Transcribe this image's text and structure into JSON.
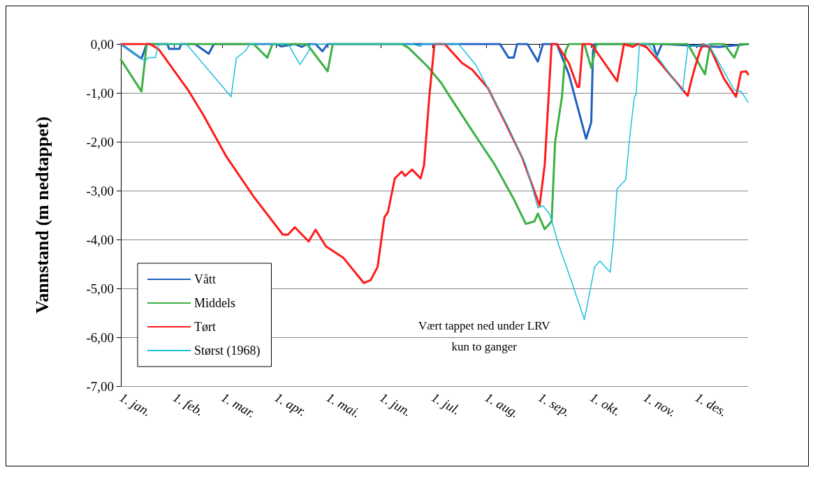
{
  "chart_data": {
    "type": "line",
    "ylabel": "Vannstand (m nedtappet)",
    "xlim": [
      "--01-01",
      "--12-31"
    ],
    "xticks": [
      {
        "value": "--01-01",
        "label": "1. jan."
      },
      {
        "value": "--02-01",
        "label": "1. feb."
      },
      {
        "value": "--03-01",
        "label": "1. mar."
      },
      {
        "value": "--04-01",
        "label": "1. apr."
      },
      {
        "value": "--05-01",
        "label": "1. mai."
      },
      {
        "value": "--06-01",
        "label": "1. jun."
      },
      {
        "value": "--07-01",
        "label": "1. jul."
      },
      {
        "value": "--08-01",
        "label": "1. aug."
      },
      {
        "value": "--09-01",
        "label": "1. sep."
      },
      {
        "value": "--10-01",
        "label": "1. okt."
      },
      {
        "value": "--11-01",
        "label": "1. nov."
      },
      {
        "value": "--12-01",
        "label": "1. des."
      }
    ],
    "ylim": [
      -7,
      0
    ],
    "yticks": [
      {
        "value": -7,
        "label": "-7,00"
      },
      {
        "value": -6,
        "label": "-6,00"
      },
      {
        "value": -5,
        "label": "-5,00"
      },
      {
        "value": -4,
        "label": "-4,00"
      },
      {
        "value": -3,
        "label": "-3,00"
      },
      {
        "value": -2,
        "label": "-2,00"
      },
      {
        "value": -1,
        "label": "-1,00"
      },
      {
        "value": 0,
        "label": "0,00"
      }
    ],
    "grid": "y",
    "legend": "bottom left",
    "marker": "none",
    "line_style": "solid",
    "annotations": [
      "Vært tappet ned under LRV\nkun to ganger"
    ],
    "series": [
      {
        "name": "Vått",
        "color": "#1f5fbf",
        "x": [
          "--01-01",
          "--01-13",
          "--01-16",
          "--01-28",
          "--01-29",
          "--02-04",
          "--02-05",
          "--02-13",
          "--02-21",
          "--02-24",
          "--04-01",
          "--04-04",
          "--04-12",
          "--04-16",
          "--04-19",
          "--04-24",
          "--04-28",
          "--05-01",
          "--08-09",
          "--08-14",
          "--08-17",
          "--08-19",
          "--08-25",
          "--08-31",
          "--09-03",
          "--09-11",
          "--09-18",
          "--09-28",
          "--10-01",
          "--10-02",
          "--10-03",
          "--11-06",
          "--11-08",
          "--11-11",
          "--12-14",
          "--12-31"
        ],
        "values": [
          0,
          -0.3,
          0,
          0,
          -0.1,
          -0.1,
          0,
          0,
          -0.2,
          0,
          0,
          -0.05,
          0,
          -0.06,
          0,
          0,
          -0.15,
          0,
          0,
          -0.28,
          -0.28,
          0,
          0,
          -0.36,
          0,
          0,
          -0.62,
          -1.94,
          -1.6,
          -0.15,
          0,
          0,
          -0.25,
          0,
          -0.06,
          0
        ]
      },
      {
        "name": "Middels",
        "color": "#3cb043",
        "x": [
          "--01-01",
          "--01-13",
          "--01-16",
          "--03-19",
          "--03-27",
          "--03-30",
          "--04-19",
          "--05-01",
          "--05-04",
          "--06-13",
          "--06-17",
          "--06-28",
          "--07-06",
          "--07-11",
          "--07-24",
          "--07-30",
          "--08-06",
          "--08-17",
          "--08-24",
          "--08-29",
          "--08-31",
          "--09-04",
          "--09-08",
          "--09-10",
          "--09-14",
          "--09-16",
          "--09-18",
          "--09-27",
          "--10-01",
          "--10-04",
          "--11-26",
          "--12-06",
          "--12-09",
          "--12-17",
          "--12-23",
          "--12-26",
          "--12-31"
        ],
        "values": [
          -0.32,
          -0.97,
          0,
          0,
          -0.28,
          0,
          0,
          -0.56,
          0,
          0,
          -0.08,
          -0.46,
          -0.8,
          -1.08,
          -1.78,
          -2.1,
          -2.47,
          -3.17,
          -3.68,
          -3.63,
          -3.47,
          -3.79,
          -3.63,
          -2.01,
          -1.08,
          -0.15,
          0,
          0,
          -0.49,
          0,
          0,
          -0.62,
          0,
          0,
          -0.28,
          0,
          0
        ]
      },
      {
        "name": "Tørt",
        "color": "#ff1a1a",
        "x": [
          "--01-01",
          "--01-18",
          "--01-23",
          "--02-09",
          "--02-18",
          "--03-03",
          "--03-19",
          "--04-05",
          "--04-08",
          "--04-12",
          "--04-20",
          "--04-24",
          "--04-30",
          "--05-10",
          "--05-22",
          "--05-26",
          "--05-30",
          "--06-03",
          "--06-05",
          "--06-09",
          "--06-13",
          "--06-15",
          "--06-19",
          "--06-24",
          "--06-26",
          "--06-29",
          "--07-02",
          "--07-08",
          "--07-18",
          "--07-24",
          "--08-02",
          "--08-12",
          "--08-22",
          "--09-01",
          "--09-04",
          "--09-08",
          "--09-11",
          "--09-18",
          "--09-23",
          "--09-24",
          "--09-26",
          "--10-01",
          "--10-16",
          "--10-20",
          "--10-25",
          "--10-28",
          "--11-02",
          "--11-11",
          "--11-26",
          "--11-28",
          "--11-30",
          "--12-03",
          "--12-05",
          "--12-09",
          "--12-17",
          "--12-24",
          "--12-27",
          "--12-30",
          "--12-31"
        ],
        "values": [
          0,
          0,
          -0.11,
          -0.94,
          -1.46,
          -2.29,
          -3.12,
          -3.9,
          -3.9,
          -3.75,
          -4.04,
          -3.8,
          -4.14,
          -4.37,
          -4.89,
          -4.83,
          -4.56,
          -3.54,
          -3.44,
          -2.75,
          -2.61,
          -2.7,
          -2.57,
          -2.75,
          -2.47,
          -1.08,
          0,
          0,
          -0.39,
          -0.53,
          -0.9,
          -1.6,
          -2.33,
          -3.31,
          -2.47,
          0,
          0,
          -0.39,
          -0.88,
          -0.88,
          0,
          0,
          -0.76,
          0,
          -0.06,
          0,
          -0.06,
          -0.43,
          -1.06,
          -0.76,
          -0.5,
          -0.15,
          0,
          -0.08,
          -0.71,
          -1.08,
          -0.57,
          -0.56,
          -0.62
        ]
      },
      {
        "name": "Størst (1968)",
        "color": "#1ec0e0",
        "x": [
          "--01-01",
          "--01-15",
          "--01-17",
          "--01-21",
          "--01-23",
          "--02-08",
          "--03-06",
          "--03-09",
          "--03-14",
          "--03-17",
          "--04-08",
          "--04-15",
          "--04-20",
          "--04-21",
          "--06-19",
          "--06-24",
          "--06-25",
          "--07-16",
          "--07-26",
          "--08-02",
          "--08-13",
          "--08-24",
          "--08-31",
          "--09-03",
          "--09-07",
          "--09-12",
          "--09-18",
          "--09-27",
          "--10-03",
          "--10-06",
          "--10-12",
          "--10-14",
          "--10-16",
          "--10-21",
          "--10-23",
          "--10-26",
          "--10-27",
          "--10-29",
          "--11-03",
          "--11-23",
          "--11-26",
          "--12-08",
          "--12-23",
          "--12-27",
          "--12-31"
        ],
        "values": [
          0,
          -0.35,
          -0.28,
          -0.28,
          0,
          0,
          -1.08,
          -0.29,
          -0.15,
          0,
          0,
          -0.42,
          -0.15,
          0,
          0,
          -0.05,
          0,
          0,
          -0.43,
          -0.9,
          -1.64,
          -2.47,
          -3.35,
          -3.31,
          -3.49,
          -4.1,
          -4.7,
          -5.64,
          -4.56,
          -4.44,
          -4.67,
          -3.96,
          -2.96,
          -2.78,
          -2.01,
          -1.08,
          -1.04,
          0,
          0,
          -0.97,
          -0.06,
          0,
          -0.94,
          -0.97,
          -1.19
        ]
      }
    ]
  }
}
